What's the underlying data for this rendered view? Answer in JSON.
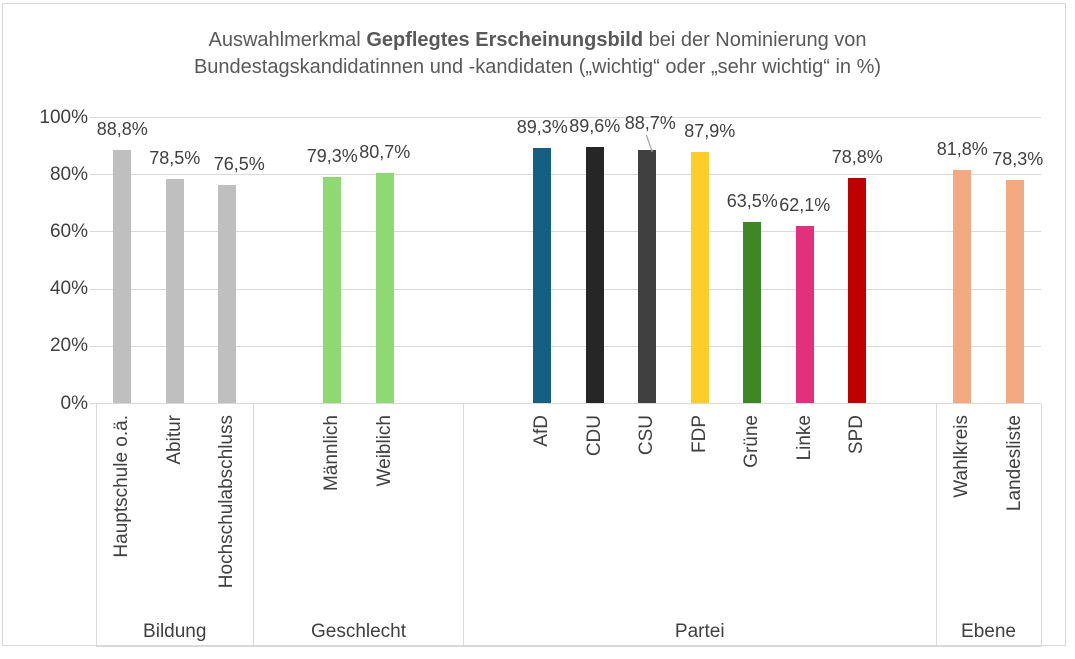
{
  "title": {
    "line1_pre": "Auswahlmerkmal ",
    "line1_bold": "Gepflegtes Erscheinungsbild",
    "line1_post": " bei der Nominierung von",
    "line2": "Bundestagskandidatinnen und -kandidaten („wichtig“ oder „sehr wichtig“ in %)"
  },
  "chart_data": {
    "type": "bar",
    "title": "Auswahlmerkmal Gepflegtes Erscheinungsbild bei der Nominierung von Bundestagskandidatinnen und -kandidaten („wichtig“ oder „sehr wichtig“ in %)",
    "xlabel": "",
    "ylabel": "",
    "ylim": [
      0,
      100
    ],
    "grid": "horizontal-only",
    "legend": "none",
    "yticks": [
      {
        "value": 0,
        "label": "0%"
      },
      {
        "value": 20,
        "label": "20%"
      },
      {
        "value": 40,
        "label": "40%"
      },
      {
        "value": 60,
        "label": "60%"
      },
      {
        "value": 80,
        "label": "80%"
      },
      {
        "value": 100,
        "label": "100%"
      }
    ],
    "groups": [
      {
        "label": "Bildung",
        "pad_before": 0,
        "pad_after": 0,
        "bars": [
          {
            "label": "Hauptschule o.ä.",
            "value": 88.8,
            "display": "88,8%",
            "color": "#BFBFBF"
          },
          {
            "label": "Abitur",
            "value": 78.5,
            "display": "78,5%",
            "color": "#BFBFBF"
          },
          {
            "label": "Hochschulabschluss",
            "value": 76.5,
            "display": "76,5%",
            "color": "#BFBFBF",
            "label_dx": 12
          }
        ]
      },
      {
        "label": "Geschlecht",
        "pad_before": 1,
        "pad_after": 1,
        "bars": [
          {
            "label": "Männlich",
            "value": 79.3,
            "display": "79,3%",
            "color": "#8ED973"
          },
          {
            "label": "Weiblich",
            "value": 80.7,
            "display": "80,7%",
            "color": "#8ED973"
          }
        ]
      },
      {
        "label": "Partei",
        "pad_before": 1,
        "pad_after": 1,
        "bars": [
          {
            "label": "AfD",
            "value": 89.3,
            "display": "89,3%",
            "color": "#156082"
          },
          {
            "label": "CDU",
            "value": 89.6,
            "display": "89,6%",
            "color": "#262626"
          },
          {
            "label": "CSU",
            "value": 88.7,
            "display": "88,7%",
            "color": "#404040",
            "label_dx": 3,
            "label_dy": -6,
            "leader": true
          },
          {
            "label": "FDP",
            "value": 87.9,
            "display": "87,9%",
            "color": "#FFCD28",
            "label_dx": 10
          },
          {
            "label": "Grüne",
            "value": 63.5,
            "display": "63,5%",
            "color": "#3F8624"
          },
          {
            "label": "Linke",
            "value": 62.1,
            "display": "62,1%",
            "color": "#E2307C"
          },
          {
            "label": "SPD",
            "value": 78.8,
            "display": "78,8%",
            "color": "#C00000"
          }
        ]
      },
      {
        "label": "Ebene",
        "pad_before": 0,
        "pad_after": 0,
        "bars": [
          {
            "label": "Wahlkreis",
            "value": 81.8,
            "display": "81,8%",
            "color": "#F4AA80"
          },
          {
            "label": "Landesliste",
            "value": 78.3,
            "display": "78,3%",
            "color": "#F4AA80",
            "label_dx": 3
          }
        ]
      }
    ]
  },
  "colors": {
    "background": "#FFFFFF",
    "border": "#D9D9D9",
    "grid": "#D9D9D9",
    "axis": "#D9D9D9",
    "text": "#404040",
    "title_text": "#595959",
    "leader": "#A6A6A6"
  }
}
